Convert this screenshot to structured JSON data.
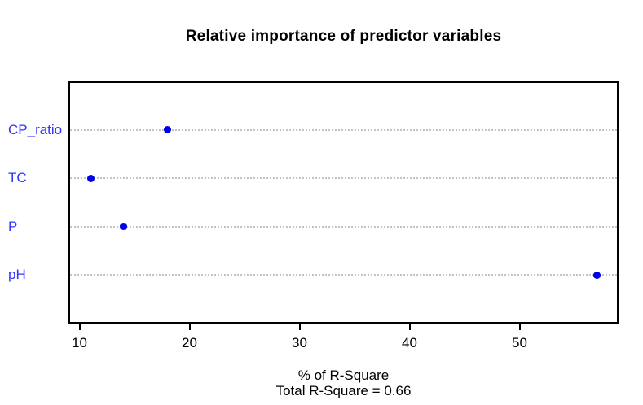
{
  "chart_data": {
    "type": "scatter",
    "variant": "dot-plot",
    "title": "Relative importance of predictor variables",
    "categories": [
      "CP_ratio",
      "TC",
      "P",
      "pH"
    ],
    "values": [
      18,
      11,
      14,
      57
    ],
    "x_ticks": [
      10,
      20,
      30,
      40,
      50
    ],
    "xlim": [
      9,
      59
    ],
    "xlabel": "% of R-Square",
    "annotation": "Total R-Square = 0.66",
    "grid": "horizontal dotted line per category",
    "legend": "none",
    "colors": {
      "point": "#0000e6",
      "category_label": "#3333ff",
      "gridline": "#c3c3c3",
      "axis": "#000000",
      "title": "#000000",
      "background": "#ffffff"
    }
  }
}
